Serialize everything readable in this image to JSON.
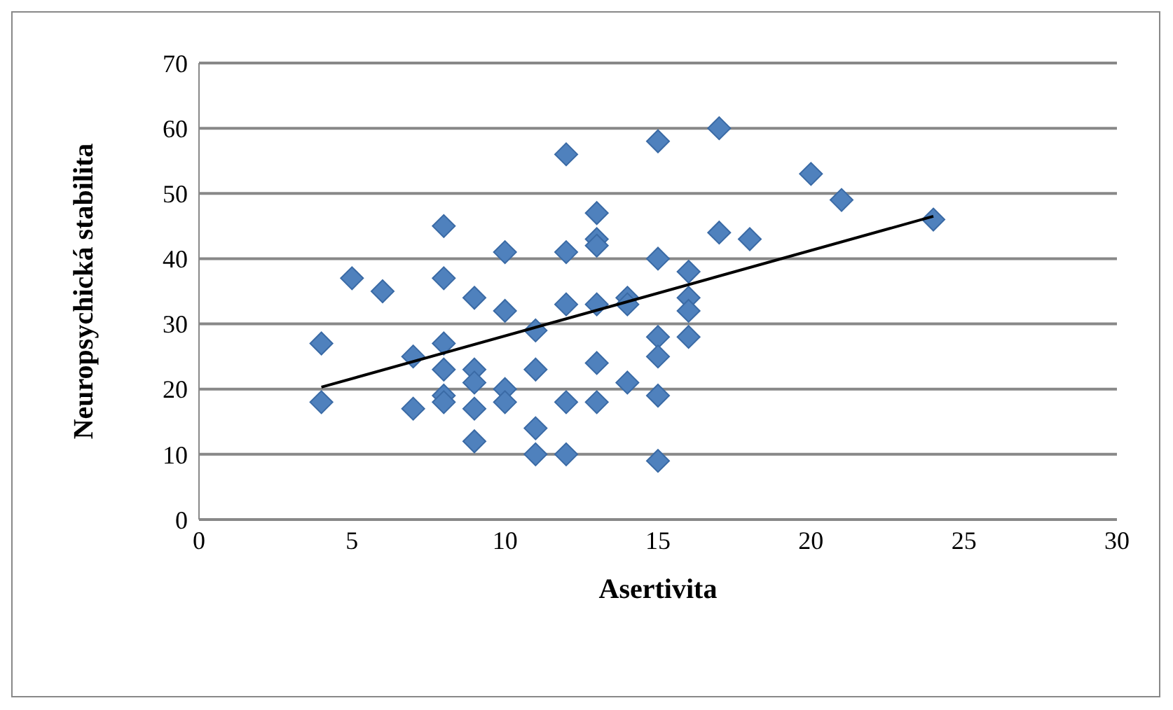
{
  "chart_data": {
    "type": "scatter",
    "xlabel": "Asertivita",
    "ylabel": "Neuropsychická stabilita",
    "xlim": [
      0,
      30
    ],
    "xticks": [
      0,
      5,
      10,
      15,
      20,
      25,
      30
    ],
    "ylim": [
      0,
      70
    ],
    "yticks": [
      0,
      10,
      20,
      30,
      40,
      50,
      60,
      70
    ],
    "grid": "y",
    "series": [
      {
        "marker": "diamond",
        "color": "#4f81bd",
        "x": [
          4,
          4,
          5,
          6,
          7,
          7,
          8,
          8,
          8,
          8,
          8,
          8,
          9,
          9,
          9,
          9,
          9,
          10,
          10,
          10,
          10,
          11,
          11,
          11,
          11,
          12,
          12,
          12,
          12,
          12,
          13,
          13,
          13,
          13,
          13,
          13,
          14,
          14,
          14,
          15,
          15,
          15,
          15,
          15,
          15,
          16,
          16,
          16,
          16,
          17,
          17,
          18,
          20,
          21,
          24
        ],
        "values": [
          27,
          18,
          37,
          35,
          25,
          17,
          45,
          37,
          27,
          23,
          19,
          18,
          34,
          23,
          21,
          17,
          12,
          41,
          32,
          20,
          18,
          29,
          23,
          14,
          10,
          56,
          41,
          33,
          18,
          10,
          47,
          43,
          42,
          33,
          24,
          18,
          34,
          33,
          21,
          58,
          40,
          28,
          25,
          19,
          9,
          38,
          34,
          32,
          28,
          60,
          44,
          43,
          53,
          49,
          46
        ]
      },
      {
        "type": "line",
        "marker": "none",
        "color": "#000000",
        "x": [
          4,
          24
        ],
        "values": [
          20.3,
          46.5
        ]
      }
    ]
  }
}
